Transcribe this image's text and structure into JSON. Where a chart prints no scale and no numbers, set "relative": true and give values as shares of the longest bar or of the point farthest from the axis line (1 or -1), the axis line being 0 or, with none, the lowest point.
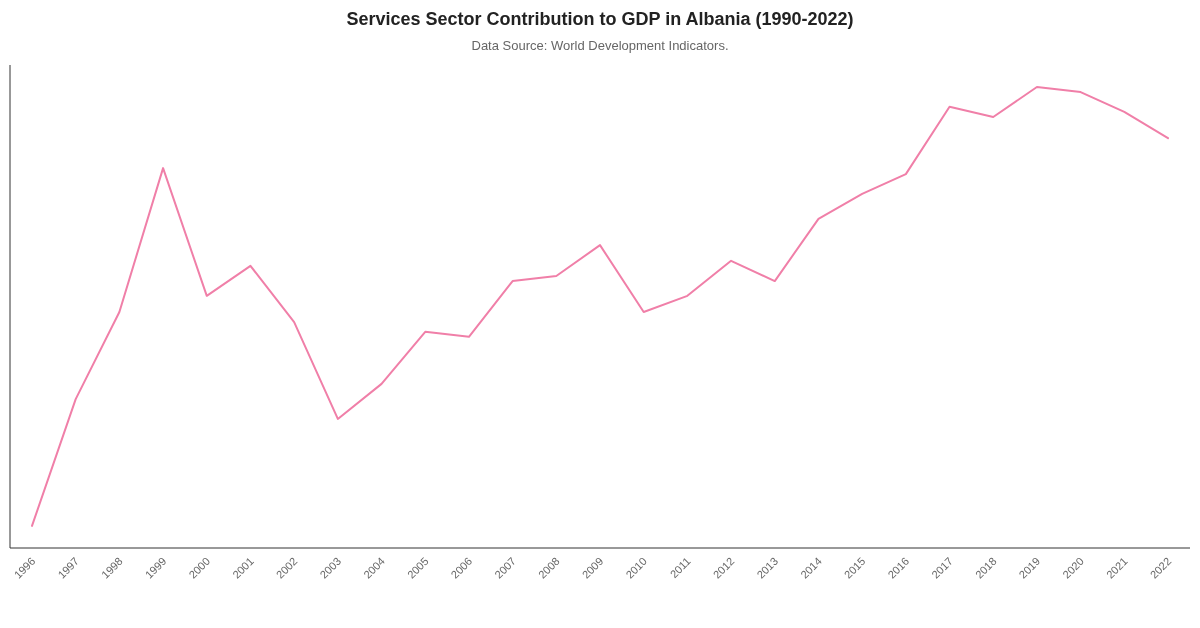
{
  "chart_data": {
    "type": "line",
    "title": "Services Sector Contribution to GDP in Albania (1990-2022)",
    "subtitle": "Data Source: World Development Indicators.",
    "relative": true,
    "categories": [
      "1996",
      "1997",
      "1998",
      "1999",
      "2000",
      "2001",
      "2002",
      "2003",
      "2004",
      "2005",
      "2006",
      "2007",
      "2008",
      "2009",
      "2010",
      "2011",
      "2012",
      "2013",
      "2014",
      "2015",
      "2016",
      "2017",
      "2018",
      "2019",
      "2020",
      "2021",
      "2022"
    ],
    "series": [
      {
        "color": "#f07fa8",
        "values": [
          0.048,
          0.323,
          0.512,
          0.824,
          0.547,
          0.612,
          0.49,
          0.28,
          0.356,
          0.469,
          0.458,
          0.579,
          0.59,
          0.657,
          0.512,
          0.547,
          0.623,
          0.579,
          0.714,
          0.768,
          0.811,
          0.957,
          0.935,
          1,
          0.989,
          0.946,
          0.889
        ]
      }
    ],
    "marker": "none",
    "line_style": "solid"
  }
}
